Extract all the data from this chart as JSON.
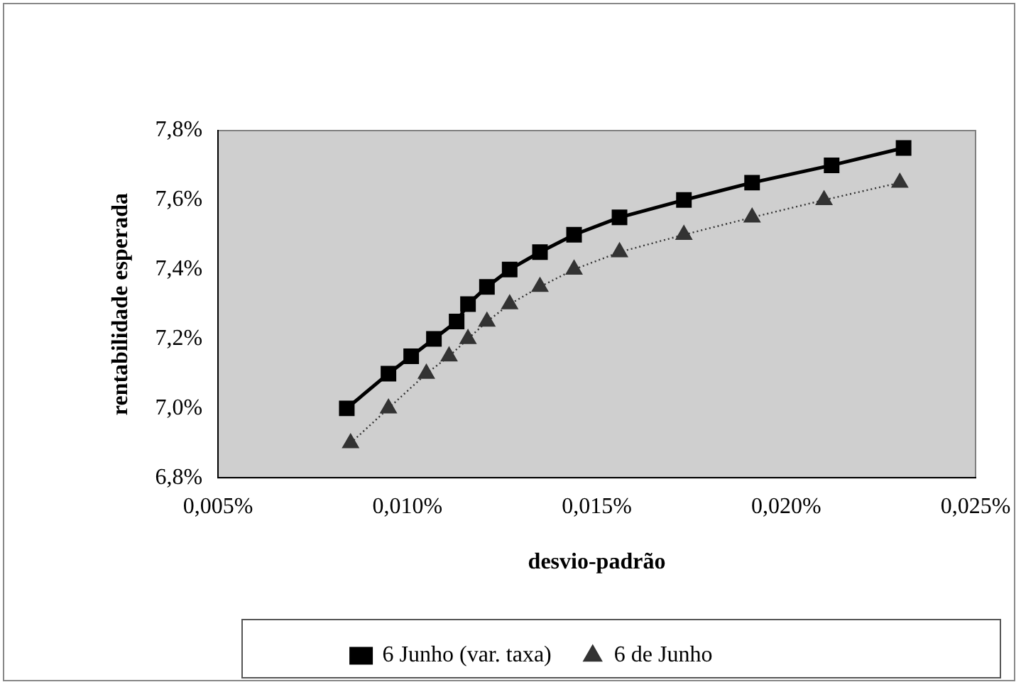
{
  "chart_data": {
    "type": "line",
    "xlabel": "desvio-padrão",
    "ylabel": "rentabilidade esperada",
    "xlim": [
      0.005,
      0.025
    ],
    "xticks": [
      {
        "value": 0.005,
        "label": "0,005%"
      },
      {
        "value": 0.01,
        "label": "0,010%"
      },
      {
        "value": 0.015,
        "label": "0,015%"
      },
      {
        "value": 0.02,
        "label": "0,020%"
      },
      {
        "value": 0.025,
        "label": "0,025%"
      }
    ],
    "ylim": [
      6.8,
      7.8
    ],
    "yticks": [
      {
        "value": 6.8,
        "label": "6,8%"
      },
      {
        "value": 7.0,
        "label": "7,0%"
      },
      {
        "value": 7.2,
        "label": "7,2%"
      },
      {
        "value": 7.4,
        "label": "7,4%"
      },
      {
        "value": 7.6,
        "label": "7,6%"
      },
      {
        "value": 7.8,
        "label": "7,8%"
      }
    ],
    "grid": false,
    "legend": "bottom",
    "series": [
      {
        "name": "6 Junho (var. taxa)",
        "color": "#000000",
        "marker": "square",
        "line_style": "solid",
        "x": [
          0.0084,
          0.0095,
          0.0101,
          0.0107,
          0.0113,
          0.0116,
          0.0121,
          0.0127,
          0.0135,
          0.0144,
          0.0156,
          0.0173,
          0.0191,
          0.0212,
          0.0231
        ],
        "values": [
          7.0,
          7.1,
          7.15,
          7.2,
          7.25,
          7.3,
          7.35,
          7.4,
          7.45,
          7.5,
          7.55,
          7.6,
          7.65,
          7.7,
          7.75
        ]
      },
      {
        "name": "6 de Junho",
        "color": "#333333",
        "marker": "triangle",
        "line_style": "dotted",
        "x": [
          0.0085,
          0.0095,
          0.0105,
          0.0111,
          0.0116,
          0.0121,
          0.0127,
          0.0135,
          0.0144,
          0.0156,
          0.0173,
          0.0191,
          0.021,
          0.023
        ],
        "values": [
          6.9,
          7.0,
          7.1,
          7.15,
          7.2,
          7.25,
          7.3,
          7.35,
          7.4,
          7.45,
          7.5,
          7.55,
          7.6,
          7.65
        ]
      }
    ]
  }
}
